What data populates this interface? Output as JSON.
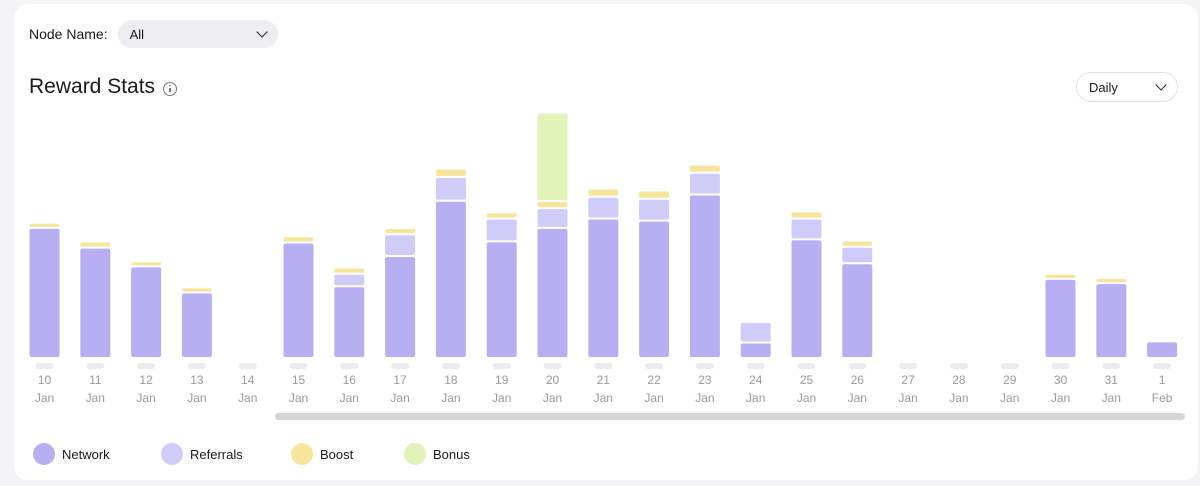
{
  "filters": {
    "node_label": "Node Name:",
    "node_value": "All",
    "period_value": "Daily"
  },
  "header": {
    "title": "Reward Stats"
  },
  "colors": {
    "network": "#b8aff3",
    "referrals": "#cfccf8",
    "boost": "#f6e59a",
    "bonus": "#e1f3b8"
  },
  "chart_data": {
    "type": "bar",
    "stacked": true,
    "grid": false,
    "legend_position": "bottom-left",
    "title": "Reward Stats",
    "categories": [
      {
        "day": "10",
        "month": "Jan"
      },
      {
        "day": "11",
        "month": "Jan"
      },
      {
        "day": "12",
        "month": "Jan"
      },
      {
        "day": "13",
        "month": "Jan"
      },
      {
        "day": "14",
        "month": "Jan"
      },
      {
        "day": "15",
        "month": "Jan"
      },
      {
        "day": "16",
        "month": "Jan"
      },
      {
        "day": "17",
        "month": "Jan"
      },
      {
        "day": "18",
        "month": "Jan"
      },
      {
        "day": "19",
        "month": "Jan"
      },
      {
        "day": "20",
        "month": "Jan"
      },
      {
        "day": "21",
        "month": "Jan"
      },
      {
        "day": "22",
        "month": "Jan"
      },
      {
        "day": "23",
        "month": "Jan"
      },
      {
        "day": "24",
        "month": "Jan"
      },
      {
        "day": "25",
        "month": "Jan"
      },
      {
        "day": "26",
        "month": "Jan"
      },
      {
        "day": "27",
        "month": "Jan"
      },
      {
        "day": "28",
        "month": "Jan"
      },
      {
        "day": "29",
        "month": "Jan"
      },
      {
        "day": "30",
        "month": "Jan"
      },
      {
        "day": "31",
        "month": "Jan"
      },
      {
        "day": "1",
        "month": "Feb"
      }
    ],
    "ylim": [
      0,
      240
    ],
    "series": [
      {
        "name": "Network",
        "key": "network",
        "values": [
          123,
          104,
          86,
          61,
          0,
          109,
          67,
          96,
          149,
          110,
          123,
          132,
          130,
          155,
          13,
          112,
          89,
          0,
          0,
          0,
          74,
          70,
          14
        ]
      },
      {
        "name": "Referrals",
        "key": "referrals",
        "values": [
          0,
          0,
          0,
          0,
          0,
          0,
          10,
          19,
          21,
          20,
          17,
          19,
          19,
          19,
          18,
          18,
          14,
          0,
          0,
          0,
          0,
          0,
          0
        ]
      },
      {
        "name": "Boost",
        "key": "boost",
        "values": [
          3,
          4,
          3,
          3,
          0,
          4,
          4,
          4,
          6,
          4,
          5,
          6,
          6,
          6,
          0,
          5,
          4,
          0,
          0,
          0,
          3,
          3,
          0
        ]
      },
      {
        "name": "Bonus",
        "key": "bonus",
        "values": [
          0,
          0,
          0,
          0,
          0,
          0,
          0,
          0,
          0,
          0,
          83,
          0,
          0,
          0,
          0,
          0,
          0,
          0,
          0,
          0,
          0,
          0,
          0
        ]
      }
    ]
  }
}
